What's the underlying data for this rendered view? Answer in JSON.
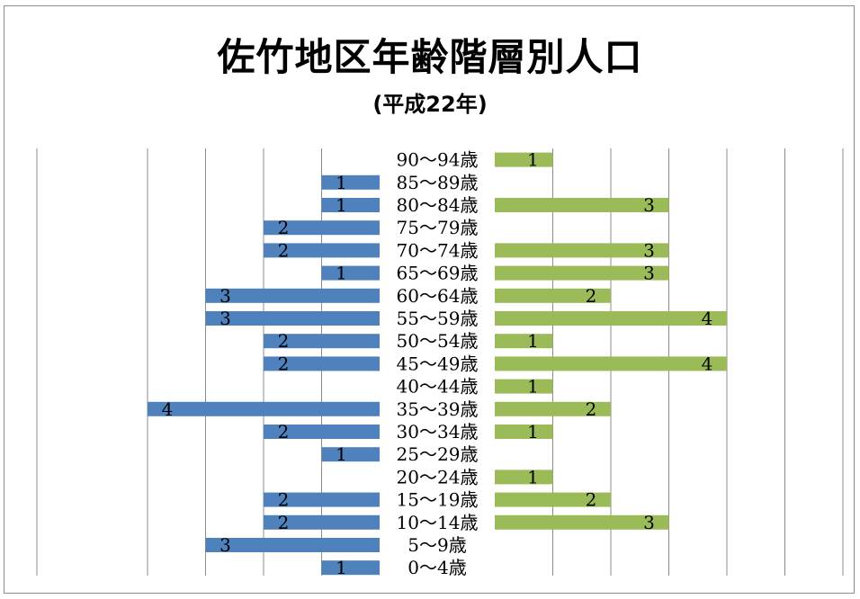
{
  "chart_data": {
    "type": "bar",
    "title": "佐竹地区年齢階層別人口",
    "subtitle": "(平成22年)",
    "categories": [
      "90～94歳",
      "85～89歳",
      "80～84歳",
      "75～79歳",
      "70～74歳",
      "65～69歳",
      "60～64歳",
      "55～59歳",
      "50～54歳",
      "45～49歳",
      "40～44歳",
      "35～39歳",
      "30～34歳",
      "25～29歳",
      "20～24歳",
      "15～19歳",
      "10～14歳",
      "5～9歳",
      "0～4歳"
    ],
    "series": [
      {
        "values": [
          0,
          1,
          1,
          2,
          2,
          1,
          3,
          3,
          2,
          2,
          0,
          4,
          2,
          1,
          0,
          2,
          2,
          3,
          1
        ],
        "color": "#4f81bd"
      },
      {
        "values": [
          1,
          0,
          3,
          0,
          3,
          3,
          2,
          4,
          1,
          4,
          1,
          2,
          1,
          0,
          1,
          2,
          3,
          0,
          0
        ],
        "color": "#9bbb59"
      }
    ],
    "xlim": [
      -6,
      6
    ],
    "grid": true
  }
}
